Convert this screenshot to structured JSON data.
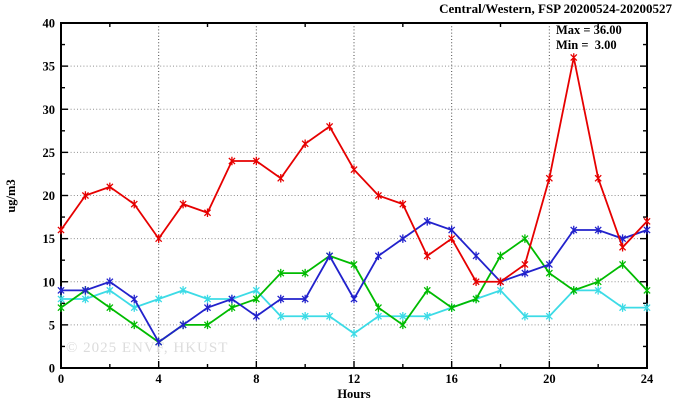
{
  "header": {
    "title": "Central/Western, FSP 20200524-20200527"
  },
  "annotation": {
    "max_label": "Max = 36.00",
    "min_label": "Min =  3.00"
  },
  "watermark": "© 2025 ENVF, HKUST",
  "chart_data": {
    "type": "line",
    "title": "Central/Western, FSP 20200524-20200527",
    "xlabel": "Hours",
    "ylabel": "ug/m3",
    "xlim": [
      0,
      24
    ],
    "ylim": [
      0,
      40
    ],
    "x_ticks_major": [
      0,
      4,
      8,
      12,
      16,
      20,
      24
    ],
    "x_ticks_minor": [
      2,
      6,
      10,
      14,
      18,
      22
    ],
    "y_ticks_major": [
      0,
      5,
      10,
      15,
      20,
      25,
      30,
      35,
      40
    ],
    "y_ticks_minor": [
      2.5,
      7.5,
      12.5,
      17.5,
      22.5,
      27.5,
      32.5,
      37.5
    ],
    "grid": true,
    "legend": "none",
    "max_value": 36.0,
    "min_value": 3.0,
    "x": [
      0,
      1,
      2,
      3,
      4,
      5,
      6,
      7,
      8,
      9,
      10,
      11,
      12,
      13,
      14,
      15,
      16,
      17,
      18,
      19,
      20,
      21,
      22,
      23,
      24
    ],
    "series": [
      {
        "name": "cyan-series",
        "color": "#3cdbe6",
        "values": [
          8,
          8,
          9,
          7,
          8,
          9,
          8,
          8,
          9,
          6,
          6,
          6,
          4,
          6,
          6,
          6,
          7,
          8,
          9,
          6,
          6,
          9,
          9,
          7,
          7
        ]
      },
      {
        "name": "green-series",
        "color": "#00bb00",
        "values": [
          7,
          9,
          7,
          5,
          3,
          5,
          5,
          7,
          8,
          11,
          11,
          13,
          12,
          7,
          5,
          9,
          7,
          8,
          13,
          15,
          11,
          9,
          10,
          12,
          9
        ]
      },
      {
        "name": "blue-series",
        "color": "#2222cc",
        "values": [
          9,
          9,
          10,
          8,
          3,
          5,
          7,
          8,
          6,
          8,
          8,
          13,
          8,
          13,
          15,
          17,
          16,
          13,
          10,
          11,
          12,
          16,
          16,
          15,
          16
        ]
      },
      {
        "name": "red-series",
        "color": "#e60000",
        "values": [
          16,
          20,
          21,
          19,
          15,
          19,
          18,
          24,
          24,
          22,
          26,
          28,
          23,
          20,
          19,
          13,
          15,
          10,
          10,
          12,
          22,
          36,
          22,
          14,
          17
        ]
      }
    ],
    "colors": {
      "h_grid": "#909090",
      "v_grid": "#4a4a4a",
      "frame": "#000000"
    }
  }
}
